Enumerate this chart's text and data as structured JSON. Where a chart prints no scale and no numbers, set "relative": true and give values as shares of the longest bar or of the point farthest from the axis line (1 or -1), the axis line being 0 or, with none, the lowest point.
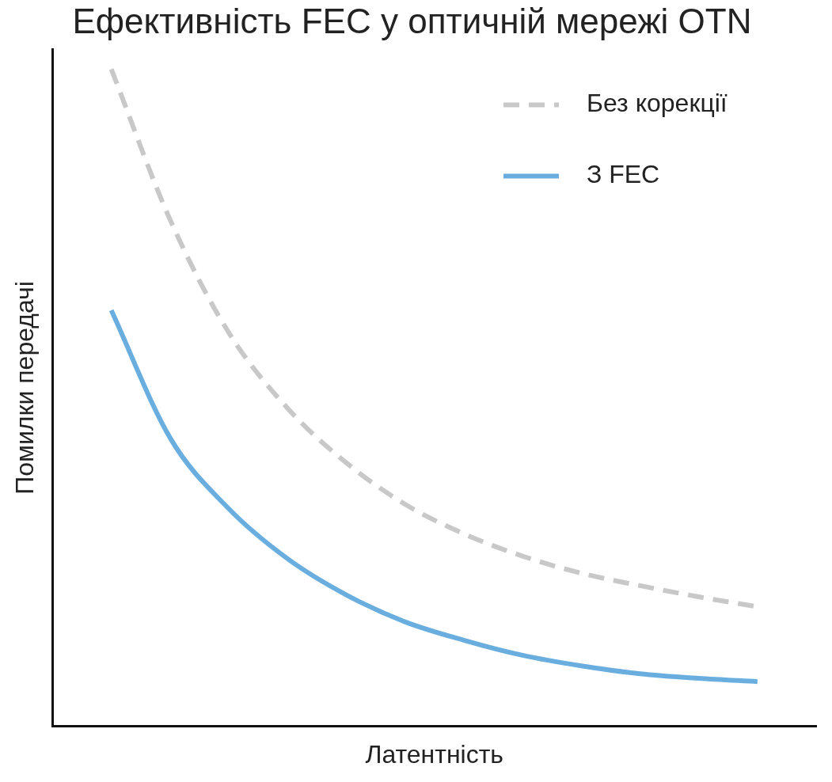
{
  "chart_data": {
    "type": "line",
    "title": "Ефективність FEC у оптичній мережі OTN",
    "xlabel": "Латентність",
    "ylabel": "Помилки передачі",
    "relative": true,
    "legend": "top right",
    "grid": false,
    "categories": [
      null,
      null,
      null,
      null,
      null,
      null,
      null,
      null,
      null,
      null,
      null,
      null,
      null,
      null
    ],
    "series": [
      {
        "name": "Без корекції",
        "color": "#c8c8c8",
        "line_style": "dashed",
        "values": [
          null,
          1.0,
          0.771,
          0.599,
          0.484,
          0.401,
          0.338,
          0.293,
          0.259,
          0.233,
          0.214,
          0.197,
          0.182,
          null
        ]
      },
      {
        "name": "З FEC",
        "color": "#6aaee0",
        "line_style": "solid",
        "values": [
          null,
          0.633,
          0.439,
          0.331,
          0.255,
          0.2,
          0.159,
          0.131,
          0.108,
          0.092,
          0.08,
          0.073,
          0.068,
          null
        ]
      }
    ]
  }
}
